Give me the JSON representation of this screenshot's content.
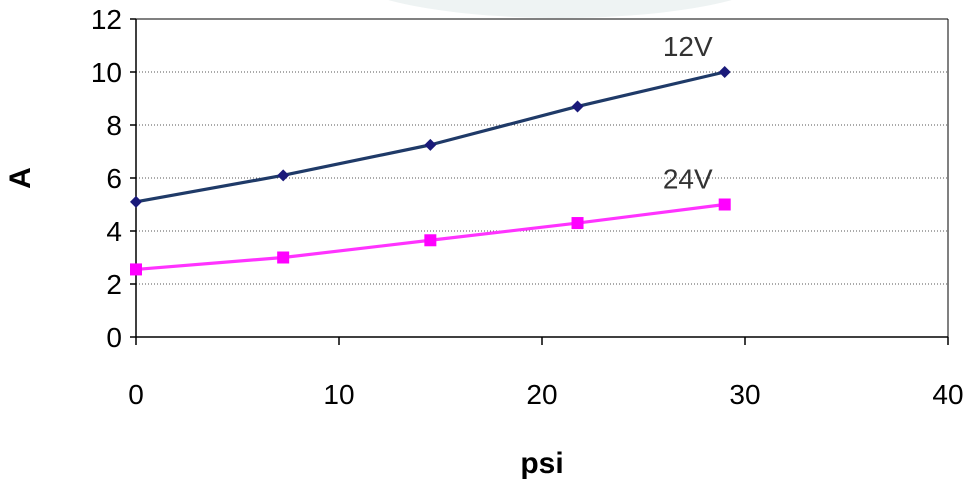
{
  "chart_data": {
    "type": "line",
    "title": "",
    "xlabel": "psi",
    "ylabel": "A",
    "xlim": [
      0,
      40
    ],
    "ylim": [
      0,
      12
    ],
    "x_ticks": [
      0,
      10,
      20,
      30,
      40
    ],
    "y_ticks": [
      0,
      2,
      4,
      6,
      8,
      10,
      12
    ],
    "x_tick_labels": [
      "0",
      "10",
      "20",
      "30",
      "40"
    ],
    "y_tick_labels": [
      "0",
      "2",
      "4",
      "6",
      "8",
      "10",
      "12"
    ],
    "grid": "horizontal dotted",
    "legend": "none",
    "series": [
      {
        "name": "12V",
        "color": "#1f3a68",
        "marker_color": "#1a1a7a",
        "marker": "diamond",
        "x": [
          0,
          7.25,
          14.5,
          21.75,
          29
        ],
        "y": [
          5.1,
          6.1,
          7.25,
          8.7,
          10.0
        ]
      },
      {
        "name": "24V",
        "color": "#ff33ff",
        "marker_color": "#ff00ff",
        "marker": "square",
        "x": [
          0,
          7.25,
          14.5,
          21.75,
          29
        ],
        "y": [
          2.55,
          3.0,
          3.65,
          4.3,
          5.0
        ]
      }
    ]
  }
}
